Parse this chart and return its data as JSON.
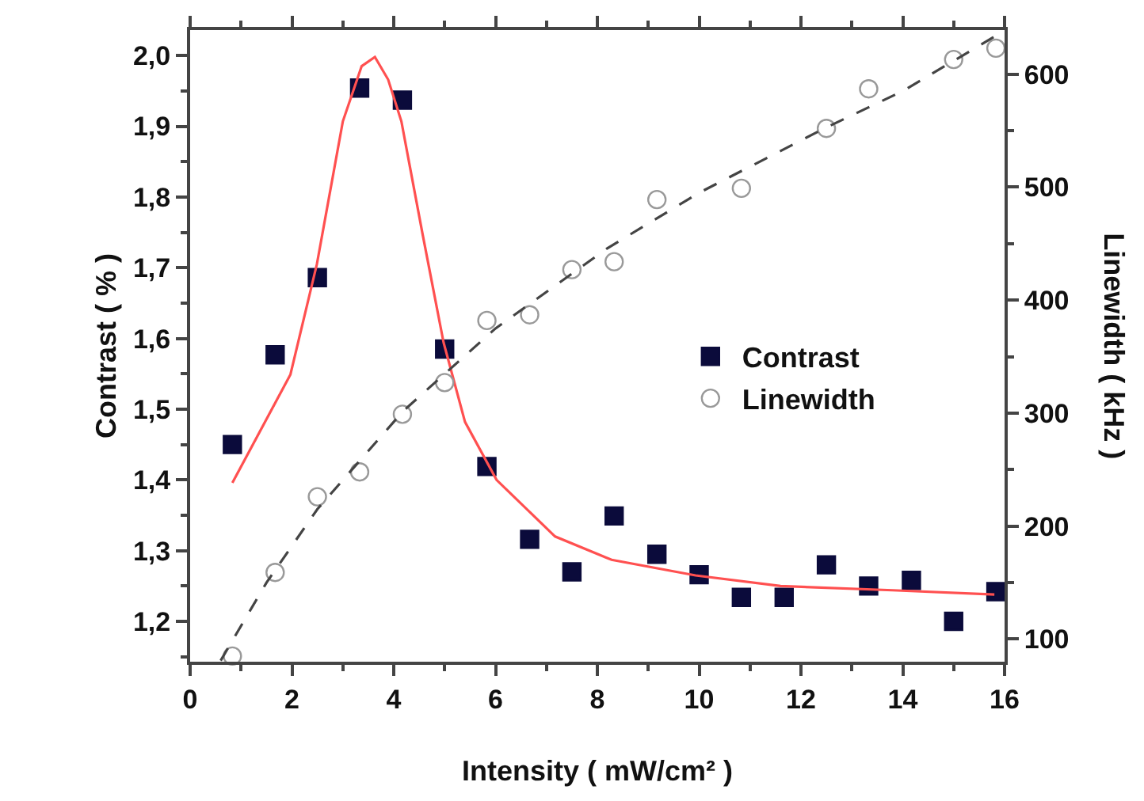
{
  "chart_data": {
    "type": "scatter",
    "xlabel": "Intensity ( mW/cm² )",
    "ylabel": "Contrast ( % )",
    "y2label": "Linewidth ( kHz )",
    "xlim": [
      0,
      16
    ],
    "xticks": [
      0,
      2,
      4,
      6,
      8,
      10,
      12,
      14,
      16
    ],
    "ylim": [
      1.143,
      2.036
    ],
    "yticks": [
      {
        "value": 1.2,
        "label": "1,2"
      },
      {
        "value": 1.3,
        "label": "1,3"
      },
      {
        "value": 1.4,
        "label": "1,4"
      },
      {
        "value": 1.5,
        "label": "1,5"
      },
      {
        "value": 1.6,
        "label": "1,6"
      },
      {
        "value": 1.7,
        "label": "1,7"
      },
      {
        "value": 1.8,
        "label": "1,8"
      },
      {
        "value": 1.9,
        "label": "1,9"
      },
      {
        "value": 2.0,
        "label": "2,0"
      }
    ],
    "y2lim": [
      80,
      639
    ],
    "y2ticks": [
      100,
      200,
      300,
      400,
      500,
      600
    ],
    "grid": false,
    "legend": "right",
    "series": [
      {
        "name": "Contrast",
        "marker": "square",
        "color": "#0b0b3b",
        "x": [
          0.83,
          1.67,
          2.5,
          3.33,
          4.17,
          5.0,
          5.83,
          6.67,
          7.5,
          8.33,
          9.17,
          10.0,
          10.83,
          11.67,
          12.5,
          13.33,
          14.17,
          15.0,
          15.83
        ],
        "values": [
          1.45,
          1.577,
          1.686,
          1.954,
          1.937,
          1.585,
          1.419,
          1.316,
          1.27,
          1.349,
          1.295,
          1.266,
          1.234,
          1.234,
          1.28,
          1.25,
          1.258,
          1.2,
          1.242
        ]
      },
      {
        "name": "Linewidth",
        "axis": "y2",
        "marker": "circle",
        "color": "#999999",
        "x": [
          0.83,
          1.67,
          2.5,
          3.33,
          4.17,
          5.0,
          5.83,
          6.67,
          7.5,
          8.33,
          9.17,
          10.83,
          12.5,
          13.33,
          15.0,
          15.83
        ],
        "values": [
          85,
          159,
          226,
          248,
          299,
          327,
          382,
          387,
          427,
          434,
          489,
          499,
          552,
          587,
          613,
          623
        ]
      },
      {
        "type": "line",
        "marker": "none",
        "line_style": "solid",
        "color": "#ff5050",
        "x": [
          0.83,
          1.97,
          2.49,
          3.0,
          3.37,
          3.63,
          3.89,
          4.15,
          4.56,
          4.98,
          5.4,
          6.02,
          7.17,
          8.28,
          9.93,
          11.6,
          13.8,
          15.8
        ],
        "values": [
          1.396,
          1.549,
          1.705,
          1.907,
          1.985,
          1.998,
          1.966,
          1.907,
          1.75,
          1.594,
          1.482,
          1.4,
          1.32,
          1.287,
          1.265,
          1.25,
          1.244,
          1.238
        ]
      },
      {
        "type": "line",
        "axis": "y2",
        "marker": "none",
        "line_style": "dashed",
        "color": "#444444",
        "x": [
          0.6,
          1.5,
          2.5,
          4.19,
          6.0,
          8.2,
          10.0,
          12.46,
          14.0,
          15.83
        ],
        "values": [
          81,
          150,
          215,
          302,
          375,
          446,
          495,
          552,
          585,
          634
        ]
      }
    ]
  }
}
